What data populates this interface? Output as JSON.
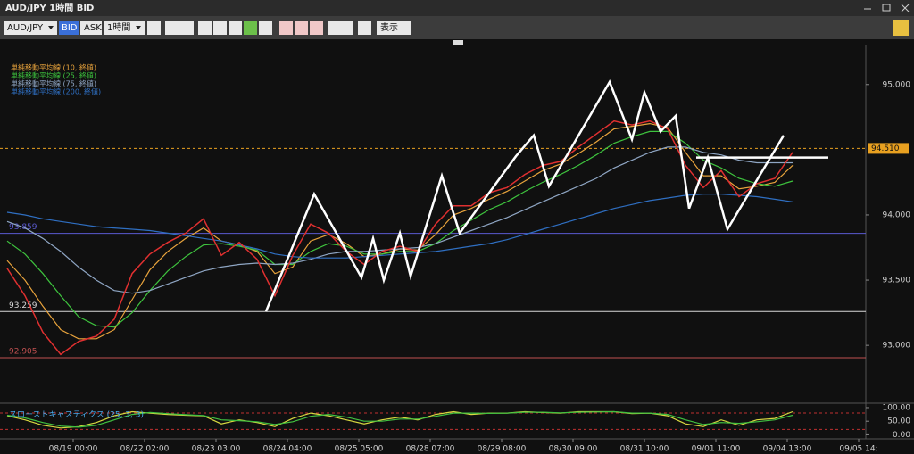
{
  "window": {
    "title": "AUD/JPY 1時間 BID"
  },
  "toolbar": {
    "symbol": "AUD/JPY",
    "bid": "BID",
    "ask": "ASK",
    "interval": "1時間",
    "view": "表示"
  },
  "chart_data": [
    {
      "type": "line",
      "x": [
        0,
        5,
        10,
        15,
        20,
        25,
        30,
        35,
        40,
        45,
        50,
        55,
        60,
        65,
        70,
        75,
        80,
        85,
        90,
        95,
        100,
        105,
        110,
        115,
        120,
        125,
        130,
        135,
        140,
        145,
        150,
        155,
        160,
        165,
        170,
        175,
        180,
        185,
        190,
        195,
        200,
        205,
        210,
        215,
        220
      ],
      "price": {
        "color": "#e03030",
        "values": [
          93.59,
          93.38,
          93.1,
          92.93,
          93.03,
          93.07,
          93.2,
          93.55,
          93.7,
          93.79,
          93.86,
          93.97,
          93.69,
          93.79,
          93.66,
          93.38,
          93.69,
          93.93,
          93.86,
          93.72,
          93.62,
          93.72,
          93.76,
          93.72,
          93.93,
          94.07,
          94.07,
          94.17,
          94.21,
          94.31,
          94.38,
          94.41,
          94.52,
          94.62,
          94.72,
          94.69,
          94.72,
          94.66,
          94.38,
          94.21,
          94.34,
          94.14,
          94.24,
          94.28,
          94.48
        ]
      },
      "series": [
        {
          "name": "単純移動平均線 (10, 終値)",
          "color": "#e8a33c",
          "values": [
            93.65,
            93.5,
            93.3,
            93.12,
            93.05,
            93.05,
            93.12,
            93.35,
            93.58,
            93.72,
            93.82,
            93.9,
            93.8,
            93.77,
            93.72,
            93.55,
            93.6,
            93.8,
            93.85,
            93.78,
            93.68,
            93.7,
            93.74,
            93.73,
            93.85,
            94.0,
            94.05,
            94.12,
            94.18,
            94.26,
            94.34,
            94.39,
            94.47,
            94.56,
            94.66,
            94.68,
            94.7,
            94.67,
            94.48,
            94.3,
            94.3,
            94.2,
            94.22,
            94.25,
            94.38
          ]
        },
        {
          "name": "単純移動平均線 (25, 終値)",
          "color": "#3ec43e",
          "values": [
            93.8,
            93.7,
            93.55,
            93.38,
            93.22,
            93.15,
            93.14,
            93.25,
            93.42,
            93.57,
            93.68,
            93.77,
            93.78,
            93.76,
            93.73,
            93.62,
            93.62,
            93.72,
            93.78,
            93.76,
            93.7,
            93.7,
            93.72,
            93.72,
            93.78,
            93.88,
            93.96,
            94.04,
            94.1,
            94.18,
            94.25,
            94.31,
            94.38,
            94.46,
            94.55,
            94.6,
            94.64,
            94.64,
            94.55,
            94.42,
            94.36,
            94.28,
            94.24,
            94.22,
            94.26
          ]
        },
        {
          "name": "単純移動平均線 (75, 終値)",
          "color": "#8fa6c4",
          "values": [
            93.95,
            93.9,
            93.82,
            93.72,
            93.6,
            93.5,
            93.42,
            93.4,
            93.42,
            93.47,
            93.52,
            93.57,
            93.6,
            93.62,
            93.63,
            93.62,
            93.63,
            93.66,
            93.7,
            93.72,
            93.72,
            93.73,
            93.74,
            93.75,
            93.78,
            93.83,
            93.88,
            93.93,
            93.98,
            94.04,
            94.1,
            94.16,
            94.22,
            94.28,
            94.36,
            94.42,
            94.48,
            94.52,
            94.52,
            94.48,
            94.46,
            94.42,
            94.4,
            94.4,
            94.4
          ]
        },
        {
          "name": "単純移動平均線 (200, 終値)",
          "color": "#2f6fc2",
          "values": [
            94.02,
            94.0,
            93.97,
            93.95,
            93.93,
            93.91,
            93.9,
            93.89,
            93.88,
            93.86,
            93.84,
            93.82,
            93.8,
            93.77,
            93.74,
            93.7,
            93.68,
            93.67,
            93.67,
            93.67,
            93.68,
            93.69,
            93.7,
            93.71,
            93.72,
            93.74,
            93.76,
            93.78,
            93.81,
            93.85,
            93.89,
            93.93,
            93.97,
            94.01,
            94.05,
            94.08,
            94.11,
            94.13,
            94.15,
            94.16,
            94.16,
            94.15,
            94.14,
            94.12,
            94.1
          ]
        }
      ],
      "levels": [
        {
          "value": 95.05,
          "color": "#5a5ad0"
        },
        {
          "value": 94.92,
          "color": "#c05050"
        },
        {
          "value": 94.51,
          "label": "94.510",
          "color": "#e8a020",
          "style": "dashed"
        },
        {
          "value": 93.859,
          "label": "93.859",
          "color": "#5a5ad0"
        },
        {
          "value": 93.259,
          "label": "93.259",
          "color": "#d8d8d8"
        },
        {
          "value": 92.905,
          "label": "92.905",
          "color": "#c05050"
        }
      ],
      "drawings": [
        {
          "color": "#ffffff",
          "x": [
            72.5,
            86,
            99.25,
            102.5,
            105.5,
            110,
            113,
            121.75,
            126.75,
            142.5,
            147.5,
            151.75,
            168.75,
            175,
            178.5,
            183,
            187.25,
            191,
            196.25,
            201.75,
            217.5
          ],
          "y": [
            93.26,
            94.16,
            93.52,
            93.82,
            93.5,
            93.86,
            93.53,
            94.3,
            93.86,
            94.45,
            94.61,
            94.22,
            95.02,
            94.58,
            94.94,
            94.64,
            94.76,
            94.05,
            94.44,
            93.89,
            94.61
          ]
        },
        {
          "color": "#ffffff",
          "x": [
            193,
            230
          ],
          "y": [
            94.44,
            94.44
          ]
        }
      ],
      "xlim": [
        0,
        240
      ],
      "ylim": [
        92.57,
        95.32
      ],
      "yticks": [
        {
          "value": 93,
          "label": "93.000"
        },
        {
          "value": 93.5,
          "label": "93.500"
        },
        {
          "value": 94,
          "label": "94.000"
        },
        {
          "value": 95,
          "label": "95.000"
        }
      ],
      "xticks": [
        {
          "value": 18.5,
          "label": "08/19 00:00"
        },
        {
          "value": 38.5,
          "label": "08/22 02:00"
        },
        {
          "value": 58.5,
          "label": "08/23 03:00"
        },
        {
          "value": 78.5,
          "label": "08/24 04:00"
        },
        {
          "value": 98.5,
          "label": "08/25 05:00"
        },
        {
          "value": 118.5,
          "label": "08/28 07:00"
        },
        {
          "value": 138.5,
          "label": "08/29 08:00"
        },
        {
          "value": 158.5,
          "label": "08/30 09:00"
        },
        {
          "value": 178.5,
          "label": "08/31 10:00"
        },
        {
          "value": 198.5,
          "label": "09/01 11:00"
        },
        {
          "value": 218.5,
          "label": "09/04 13:00"
        },
        {
          "value": 238.5,
          "label": "09/05 14:"
        }
      ]
    },
    {
      "type": "line",
      "title": "スローストキャスティクス (25, 3, 3)",
      "x": [
        0,
        5,
        10,
        15,
        20,
        25,
        30,
        35,
        40,
        45,
        50,
        55,
        60,
        65,
        70,
        75,
        80,
        85,
        90,
        95,
        100,
        105,
        110,
        115,
        120,
        125,
        130,
        135,
        140,
        145,
        150,
        155,
        160,
        165,
        170,
        175,
        180,
        185,
        190,
        195,
        200,
        205,
        210,
        215,
        220
      ],
      "series": [
        {
          "color": "#d8d840",
          "values": [
            70,
            55,
            35,
            25,
            30,
            45,
            70,
            85,
            80,
            75,
            72,
            70,
            40,
            55,
            45,
            30,
            60,
            80,
            70,
            55,
            40,
            55,
            65,
            55,
            75,
            85,
            75,
            80,
            80,
            85,
            82,
            80,
            85,
            85,
            85,
            78,
            80,
            70,
            40,
            30,
            55,
            35,
            55,
            60,
            85
          ]
        },
        {
          "color": "#40c040",
          "values": [
            72,
            62,
            45,
            32,
            28,
            35,
            55,
            75,
            82,
            78,
            74,
            71,
            55,
            52,
            48,
            38,
            48,
            68,
            75,
            65,
            50,
            50,
            58,
            58,
            68,
            80,
            80,
            79,
            80,
            83,
            83,
            81,
            83,
            84,
            85,
            80,
            80,
            75,
            55,
            38,
            45,
            42,
            48,
            55,
            72
          ]
        }
      ],
      "levels": [
        {
          "value": 80,
          "color": "#c03030",
          "style": "dashed"
        },
        {
          "value": 20,
          "color": "#c03030",
          "style": "dashed"
        }
      ],
      "xlim": [
        0,
        240
      ],
      "ylim": [
        -15,
        113
      ],
      "yticks": [
        {
          "value": 0,
          "label": "0.00"
        },
        {
          "value": 50,
          "label": "50.00"
        },
        {
          "value": 100,
          "label": "100.00"
        }
      ]
    }
  ]
}
